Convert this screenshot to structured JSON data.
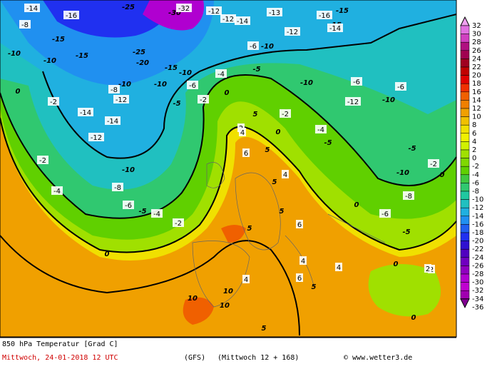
{
  "map": {
    "contour_labels": [
      -14,
      -16,
      -25,
      -30,
      -32,
      -12,
      -12,
      -14,
      -13,
      -16,
      -15,
      -15,
      -8,
      -15,
      -10,
      -10,
      -15,
      -25,
      -20,
      -15,
      -10,
      -10,
      -12,
      -10,
      -6,
      -8,
      -14,
      -12,
      -6,
      -10,
      -10,
      -5,
      -6,
      -12,
      -10,
      -6,
      -4,
      -2,
      0,
      -5,
      -14,
      -12,
      -14,
      -10,
      -8,
      -6,
      -4,
      -2,
      -4,
      -5,
      0,
      -2,
      0,
      -2,
      2,
      5,
      4,
      6,
      5,
      4,
      5,
      0,
      -2,
      -5,
      -4,
      -10,
      -8,
      -6,
      -5,
      0,
      -5,
      0,
      5,
      6,
      5,
      10,
      10,
      10,
      4,
      2,
      0,
      2,
      4,
      5,
      4,
      6,
      -2,
      0,
      5
    ],
    "footer": {
      "title": "850 hPa Temperatur [Grad C]",
      "date": "Mittwoch, 24-01-2018  12 UTC",
      "model": "(GFS)",
      "run": "(Mittwoch 12 + 168)",
      "source": "© www.wetter3.de"
    },
    "colorbar": {
      "levels": [
        {
          "value": 32,
          "color": "#f0a0f0"
        },
        {
          "value": 30,
          "color": "#e070e0"
        },
        {
          "value": 28,
          "color": "#d040c0"
        },
        {
          "value": 26,
          "color": "#b01080"
        },
        {
          "value": 24,
          "color": "#a00050"
        },
        {
          "value": 22,
          "color": "#a00020"
        },
        {
          "value": 20,
          "color": "#c00000"
        },
        {
          "value": 18,
          "color": "#e00000"
        },
        {
          "value": 16,
          "color": "#f03000"
        },
        {
          "value": 14,
          "color": "#f06000"
        },
        {
          "value": 12,
          "color": "#f08000"
        },
        {
          "value": 10,
          "color": "#f0a000"
        },
        {
          "value": 8,
          "color": "#f0c000"
        },
        {
          "value": 6,
          "color": "#f0e000"
        },
        {
          "value": 4,
          "color": "#f0f000"
        },
        {
          "value": 2,
          "color": "#d0f000"
        },
        {
          "value": 0,
          "color": "#a0e000"
        },
        {
          "value": -2,
          "color": "#80d800"
        },
        {
          "value": -4,
          "color": "#60d000"
        },
        {
          "value": -6,
          "color": "#40c840"
        },
        {
          "value": -8,
          "color": "#30c870"
        },
        {
          "value": -10,
          "color": "#20c8a0"
        },
        {
          "value": -12,
          "color": "#20c0c0"
        },
        {
          "value": -14,
          "color": "#20b0e0"
        },
        {
          "value": -16,
          "color": "#2090f0"
        },
        {
          "value": -18,
          "color": "#2060f0"
        },
        {
          "value": -20,
          "color": "#2030f0"
        },
        {
          "value": -22,
          "color": "#3010d0"
        },
        {
          "value": -24,
          "color": "#5000c0"
        },
        {
          "value": -26,
          "color": "#7000c0"
        },
        {
          "value": -28,
          "color": "#9000c0"
        },
        {
          "value": -30,
          "color": "#b000d0"
        },
        {
          "value": -32,
          "color": "#c000d0"
        },
        {
          "value": -34,
          "color": "#a000b0"
        },
        {
          "value": -36,
          "color": "#800090"
        }
      ]
    }
  }
}
